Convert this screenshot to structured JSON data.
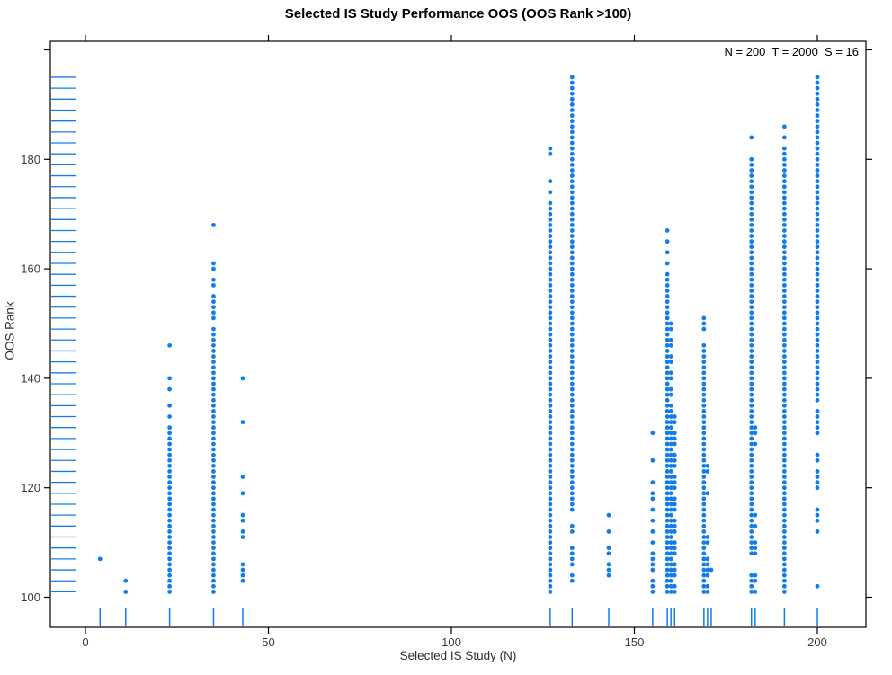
{
  "chart_data": {
    "type": "scatter",
    "title": "Selected IS Study Performance OOS (OOS Rank >100)",
    "annotation": "N = 200  T = 2000  S = 16",
    "xlabel": "Selected IS Study (N)",
    "ylabel": "OOS Rank",
    "xlim": [
      -10,
      213
    ],
    "ylim": [
      94,
      202
    ],
    "grid": false,
    "legend": "none",
    "x_ticks": [
      0,
      50,
      100,
      150,
      200
    ],
    "y_ticks_labeled": [
      100,
      120,
      140,
      160,
      180
    ],
    "y_ticks_unlabeled": [
      200
    ],
    "point_color": "#137CEC",
    "axis_color": "#000000",
    "tick_label_color": "#3a3a3a",
    "y_rug": {
      "start": 101,
      "end": 195,
      "step": 2
    },
    "x_rug": [
      4,
      11,
      23,
      35,
      43,
      127,
      133,
      143,
      155,
      159,
      160,
      161,
      169,
      170,
      171,
      182,
      183,
      191,
      200
    ],
    "ranks_encoding": "int = single OOS rank; [hi,lo] = inclusive descending run of ranks",
    "columns": [
      {
        "x": 4,
        "ranks": [
          107
        ]
      },
      {
        "x": 11,
        "ranks": [
          103,
          101
        ]
      },
      {
        "x": 23,
        "ranks": [
          146,
          140,
          138,
          135,
          133,
          [
            131,
            101
          ]
        ]
      },
      {
        "x": 35,
        "ranks": [
          168,
          161,
          160,
          158,
          157,
          [
            155,
            151
          ],
          [
            149,
            101
          ]
        ]
      },
      {
        "x": 43,
        "ranks": [
          140,
          132,
          122,
          119,
          115,
          114,
          112,
          111,
          106,
          105,
          104,
          103
        ]
      },
      {
        "x": 127,
        "ranks": [
          182,
          181,
          176,
          174,
          [
            172,
            101
          ]
        ]
      },
      {
        "x": 133,
        "ranks": [
          [
            195,
            116
          ],
          113,
          112,
          109,
          108,
          107,
          106,
          104,
          103
        ]
      },
      {
        "x": 143,
        "ranks": [
          115,
          112,
          109,
          108,
          106,
          105,
          104
        ]
      },
      {
        "x": 155,
        "ranks": [
          130,
          125,
          121,
          119,
          118,
          116,
          114,
          112,
          110,
          108,
          107,
          106,
          105,
          103,
          102,
          101
        ]
      },
      {
        "x": 159,
        "ranks": [
          167,
          165,
          163,
          161,
          [
            159,
            101
          ]
        ]
      },
      {
        "x": 160,
        "ranks": [
          150,
          149,
          147,
          146,
          144,
          143,
          141,
          140,
          138,
          137,
          [
            135,
            101
          ]
        ]
      },
      {
        "x": 161,
        "ranks": [
          133,
          132,
          130,
          129,
          128,
          126,
          125,
          124,
          122,
          121,
          120,
          118,
          117,
          116,
          114,
          113,
          112,
          110,
          109,
          108,
          106,
          105,
          104,
          102,
          101
        ]
      },
      {
        "x": 169,
        "ranks": [
          151,
          150,
          149,
          [
            146,
            101
          ]
        ]
      },
      {
        "x": 170,
        "ranks": [
          124,
          123,
          119,
          111,
          110,
          107,
          106,
          105,
          104,
          102,
          101
        ]
      },
      {
        "x": 171,
        "ranks": [
          105
        ]
      },
      {
        "x": 182,
        "ranks": [
          184,
          [
            180,
            108
          ],
          104,
          103,
          102,
          101
        ]
      },
      {
        "x": 183,
        "ranks": [
          131,
          130,
          128,
          115,
          113,
          110,
          109,
          108,
          104,
          103,
          101
        ]
      },
      {
        "x": 191,
        "ranks": [
          186,
          184,
          [
            182,
            101
          ]
        ]
      },
      {
        "x": 200,
        "ranks": [
          [
            195,
            136
          ],
          134,
          133,
          132,
          131,
          130,
          126,
          125,
          123,
          122,
          121,
          120,
          116,
          115,
          114,
          112,
          102
        ]
      }
    ]
  }
}
